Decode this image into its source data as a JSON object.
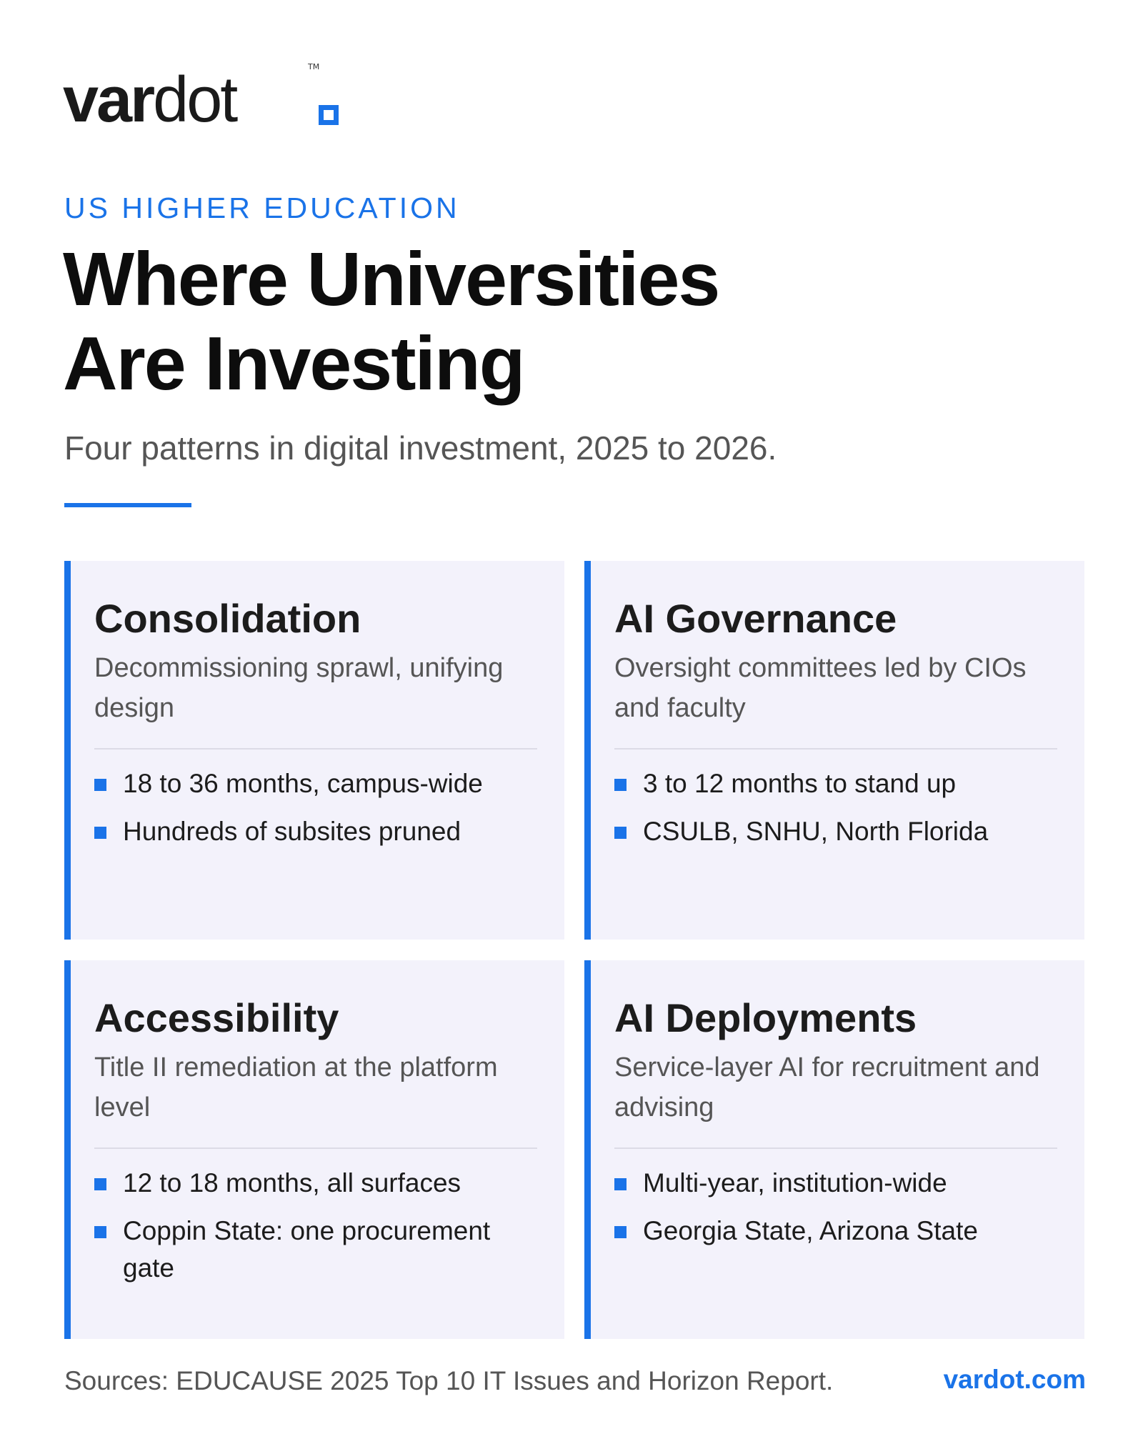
{
  "logo": {
    "wordmark_bold": "var",
    "wordmark_light": "dot",
    "tm": "TM"
  },
  "header": {
    "eyebrow": "US HIGHER EDUCATION",
    "title_line1": "Where Universities",
    "title_line2": "Are Investing",
    "subtitle": "Four patterns in digital investment, 2025 to 2026."
  },
  "cards": [
    {
      "title": "Consolidation",
      "description": "Decommissioning sprawl, unifying design",
      "bullets": [
        "18 to 36 months, campus-wide",
        "Hundreds of subsites pruned"
      ]
    },
    {
      "title": "AI Governance",
      "description": "Oversight committees led by CIOs and faculty",
      "bullets": [
        "3 to 12 months to stand up",
        "CSULB, SNHU, North Florida"
      ]
    },
    {
      "title": "Accessibility",
      "description": "Title II remediation at the platform level",
      "bullets": [
        "12 to 18 months, all surfaces",
        "Coppin State: one procurement gate"
      ]
    },
    {
      "title": "AI Deployments",
      "description": "Service-layer AI for recruitment and advising",
      "bullets": [
        "Multi-year, institution-wide",
        "Georgia State, Arizona State"
      ]
    }
  ],
  "footer": {
    "sources": "Sources: EDUCAUSE 2025 Top 10 IT Issues and Horizon Report.",
    "link": "vardot.com"
  },
  "colors": {
    "accent": "#1a73e8",
    "card_bg": "#f3f2fb"
  }
}
